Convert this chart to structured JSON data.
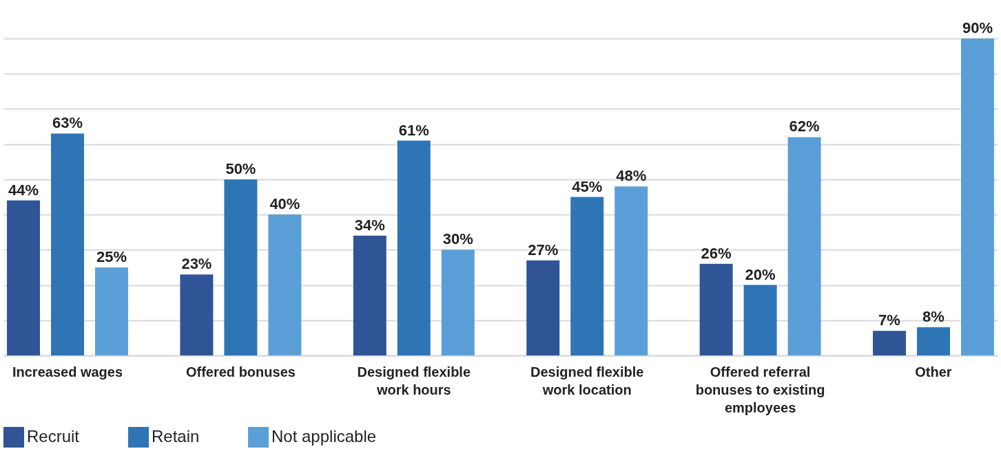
{
  "chart_data": {
    "type": "bar",
    "categories": [
      "Increased wages",
      "Offered bonuses",
      "Designed flexible work hours",
      "Designed flexible work location",
      "Offered referral bonuses to existing employees",
      "Other"
    ],
    "series": [
      {
        "name": "Recruit",
        "color": "#2f5597",
        "values": [
          44,
          23,
          34,
          27,
          26,
          7
        ],
        "value_labels": [
          "44%",
          "23%",
          "34%",
          "27%",
          "26%",
          "7%"
        ]
      },
      {
        "name": "Retain",
        "color": "#2e75b6",
        "values": [
          63,
          50,
          61,
          45,
          20,
          8
        ],
        "value_labels": [
          "63%",
          "50%",
          "61%",
          "45%",
          "20%",
          "8%"
        ]
      },
      {
        "name": "Not applicable",
        "color": "#5b9fd9",
        "values": [
          25,
          40,
          30,
          48,
          62,
          90
        ],
        "value_labels": [
          "25%",
          "40%",
          "30%",
          "48%",
          "62%",
          "90%"
        ]
      }
    ],
    "ylim": [
      0,
      90
    ],
    "yticks": [
      {
        "value": 0,
        "label": null
      },
      {
        "value": 10,
        "label": null
      },
      {
        "value": 20,
        "label": null
      },
      {
        "value": 30,
        "label": null
      },
      {
        "value": 40,
        "label": null
      },
      {
        "value": 50,
        "label": null
      },
      {
        "value": 60,
        "label": null
      },
      {
        "value": 70,
        "label": null
      },
      {
        "value": 80,
        "label": null
      },
      {
        "value": 90,
        "label": null
      }
    ],
    "grid": "y",
    "legend": "bottom left",
    "tick_labels": "x"
  }
}
